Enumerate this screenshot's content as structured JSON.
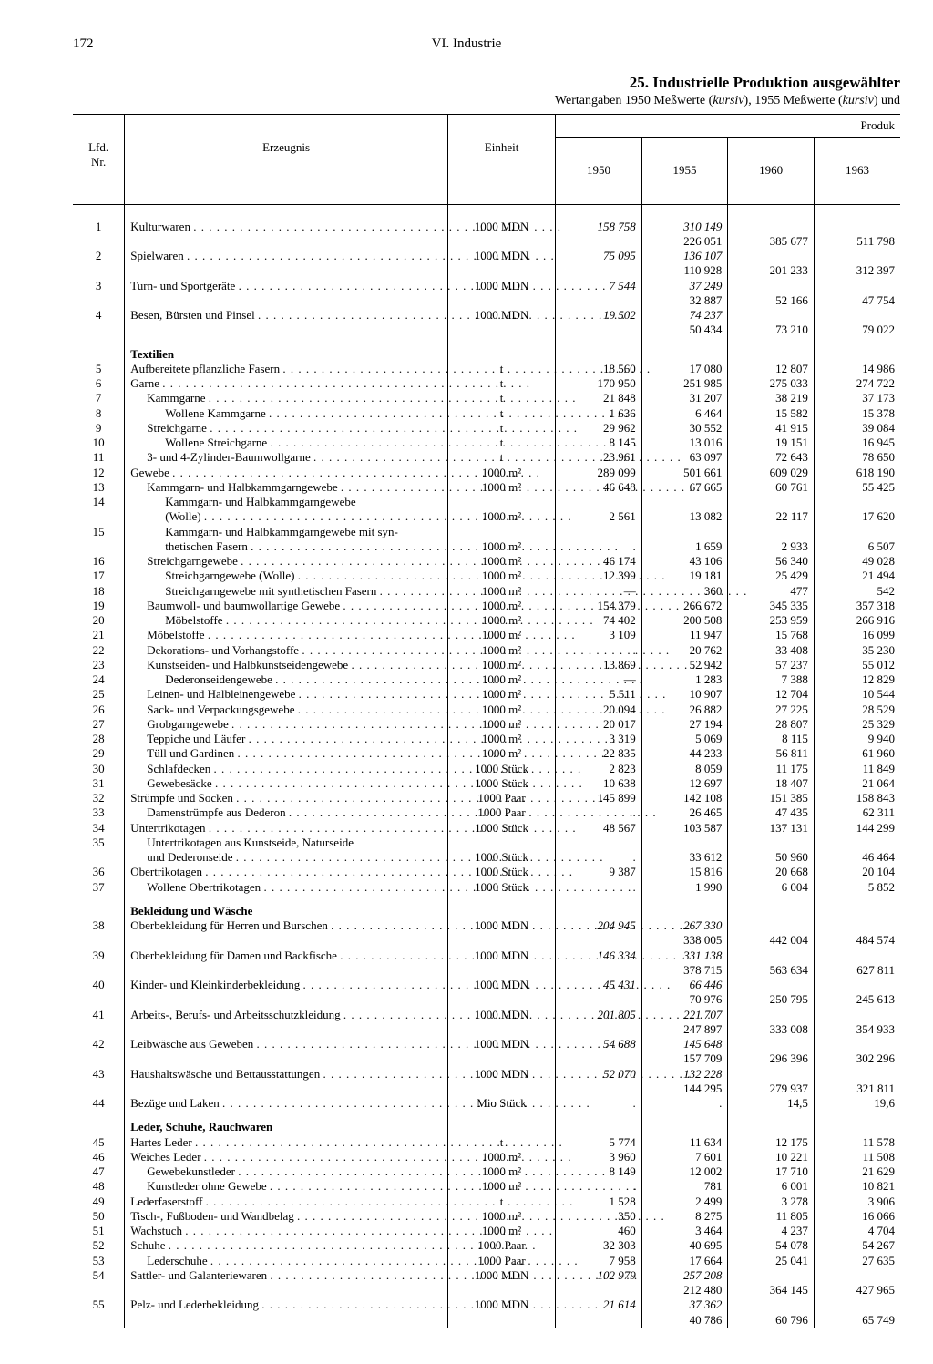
{
  "page_number": "172",
  "header_center": "VI. Industrie",
  "title": "25. Industrielle Produktion ausgewählter",
  "subtitle": "Wertangaben 1950 Meßwerte (kursiv), 1955 Meßwerte (kursiv) und",
  "col_headers": {
    "nr": "Lfd.\nNr.",
    "erz": "Erzeugnis",
    "ein": "Einheit",
    "y1950": "1950",
    "y1955": "1955",
    "y1960": "1960",
    "y1963": "1963",
    "produk": "Produk"
  },
  "rows": [
    {
      "nr": "1",
      "name": "Kulturwaren",
      "unit": "1000 MDN",
      "v": [
        [
          "158 758",
          true
        ],
        [
          "310 149",
          true
        ],
        "",
        ""
      ]
    },
    {
      "nr": "",
      "name": "",
      "unit": "",
      "v": [
        "",
        [
          "226 051",
          false
        ],
        "385 677",
        "511 798"
      ]
    },
    {
      "nr": "2",
      "name": "Spielwaren",
      "unit": "1000 MDN",
      "v": [
        [
          "75 095",
          true
        ],
        [
          "136 107",
          true
        ],
        "",
        ""
      ]
    },
    {
      "nr": "",
      "name": "",
      "unit": "",
      "v": [
        "",
        [
          "110 928",
          false
        ],
        "201 233",
        "312 397"
      ]
    },
    {
      "nr": "3",
      "name": "Turn- und Sportgeräte",
      "unit": "1000 MDN",
      "v": [
        [
          "7 544",
          true
        ],
        [
          "37 249",
          true
        ],
        "",
        ""
      ]
    },
    {
      "nr": "",
      "name": "",
      "unit": "",
      "v": [
        "",
        [
          "32 887",
          false
        ],
        "52 166",
        "47 754"
      ]
    },
    {
      "nr": "4",
      "name": "Besen, Bürsten und Pinsel",
      "unit": "1000 MDN",
      "v": [
        [
          "19 502",
          true
        ],
        [
          "74 237",
          true
        ],
        "",
        ""
      ]
    },
    {
      "nr": "",
      "name": "",
      "unit": "",
      "v": [
        "",
        [
          "50 434",
          false
        ],
        "73 210",
        "79 022"
      ]
    },
    {
      "section": "Textilien"
    },
    {
      "nr": "5",
      "name": "Aufbereitete pflanzliche Fasern",
      "unit": "t",
      "v": [
        "18 560",
        "17 080",
        "12 807",
        "14 986"
      ]
    },
    {
      "nr": "6",
      "name": "Garne",
      "unit": "t",
      "v": [
        "170 950",
        "251 985",
        "275 033",
        "274 722"
      ]
    },
    {
      "nr": "7",
      "indent": 1,
      "name": "Kammgarne",
      "unit": "t",
      "v": [
        "21 848",
        "31 207",
        "38 219",
        "37 173"
      ]
    },
    {
      "nr": "8",
      "indent": 2,
      "name": "Wollene Kammgarne",
      "unit": "t",
      "v": [
        "1 636",
        "6 464",
        "15 582",
        "15 378"
      ]
    },
    {
      "nr": "9",
      "indent": 1,
      "name": "Streichgarne",
      "unit": "t",
      "v": [
        "29 962",
        "30 552",
        "41 915",
        "39 084"
      ]
    },
    {
      "nr": "10",
      "indent": 2,
      "name": "Wollene Streichgarne",
      "unit": "t",
      "v": [
        "8 145",
        "13 016",
        "19 151",
        "16 945"
      ]
    },
    {
      "nr": "11",
      "indent": 1,
      "name": "3- und 4-Zylinder-Baumwollgarne",
      "unit": "t",
      "v": [
        "23 961",
        "63 097",
        "72 643",
        "78 650"
      ]
    },
    {
      "nr": "12",
      "name": "Gewebe",
      "unit": "1000 m²",
      "v": [
        "289 099",
        "501 661",
        "609 029",
        "618 190"
      ]
    },
    {
      "nr": "13",
      "indent": 1,
      "name": "Kammgarn- und Halbkammgarngewebe",
      "unit": "1000 m²",
      "v": [
        "46 648",
        "67 665",
        "60 761",
        "55 425"
      ]
    },
    {
      "nr": "14",
      "indent": 2,
      "name": "Kammgarn- und Halbkammgarngewebe",
      "unit": "",
      "v": [
        "",
        "",
        "",
        ""
      ],
      "nodots": true
    },
    {
      "nr": "",
      "indent": 2,
      "name": "(Wolle)",
      "unit": "1000 m²",
      "v": [
        "2 561",
        "13 082",
        "22 117",
        "17 620"
      ]
    },
    {
      "nr": "15",
      "indent": 2,
      "name": "Kammgarn- und Halbkammgarngewebe mit syn-",
      "unit": "",
      "v": [
        "",
        "",
        "",
        ""
      ],
      "nodots": true
    },
    {
      "nr": "",
      "indent": 2,
      "name": "thetischen Fasern",
      "unit": "1000 m²",
      "v": [
        ".",
        "1 659",
        "2 933",
        "6 507"
      ]
    },
    {
      "nr": "16",
      "indent": 1,
      "name": "Streichgarngewebe",
      "unit": "1000 m²",
      "v": [
        "46 174",
        "43 106",
        "56 340",
        "49 028"
      ]
    },
    {
      "nr": "17",
      "indent": 2,
      "name": "Streichgarngewebe (Wolle)",
      "unit": "1000 m²",
      "v": [
        "12 399",
        "19 181",
        "25 429",
        "21 494"
      ]
    },
    {
      "nr": "18",
      "indent": 2,
      "name": "Streichgarngewebe mit synthetischen Fasern",
      "unit": "1000 m²",
      "v": [
        "—",
        "360",
        "477",
        "542"
      ]
    },
    {
      "nr": "19",
      "indent": 1,
      "name": "Baumwoll- und baumwollartige Gewebe",
      "unit": "1000 m²",
      "v": [
        "154 379",
        "266 672",
        "345 335",
        "357 318"
      ]
    },
    {
      "nr": "20",
      "indent": 2,
      "name": "Möbelstoffe",
      "unit": "1000 m²",
      "v": [
        "74 402",
        "200 508",
        "253 959",
        "266 916"
      ]
    },
    {
      "nr": "21",
      "indent": 1,
      "name": "Möbelstoffe",
      "unit": "1000 m²",
      "v": [
        "3 109",
        "11 947",
        "15 768",
        "16 099"
      ]
    },
    {
      "nr": "22",
      "indent": 1,
      "name": "Dekorations- und Vorhangstoffe",
      "unit": "1000 m²",
      "v": [
        ".",
        "20 762",
        "33 408",
        "35 230"
      ]
    },
    {
      "nr": "23",
      "indent": 1,
      "name": "Kunstseiden- und Halbkunstseidengewebe",
      "unit": "1000 m²",
      "v": [
        "13 869",
        "52 942",
        "57 237",
        "55 012"
      ]
    },
    {
      "nr": "24",
      "indent": 2,
      "name": "Dederonseidengewebe",
      "unit": "1000 m²",
      "v": [
        "—",
        "1 283",
        "7 388",
        "12 829"
      ]
    },
    {
      "nr": "25",
      "indent": 1,
      "name": "Leinen- und Halbleinengewebe",
      "unit": "1000 m²",
      "v": [
        "5 511",
        "10 907",
        "12 704",
        "10 544"
      ]
    },
    {
      "nr": "26",
      "indent": 1,
      "name": "Sack- und Verpackungsgewebe",
      "unit": "1000 m²",
      "v": [
        "20 094",
        "26 882",
        "27 225",
        "28 529"
      ]
    },
    {
      "nr": "27",
      "indent": 1,
      "name": "Grobgarngewebe",
      "unit": "1000 m²",
      "v": [
        "20 017",
        "27 194",
        "28 807",
        "25 329"
      ]
    },
    {
      "nr": "28",
      "indent": 1,
      "name": "Teppiche und Läufer",
      "unit": "1000 m²",
      "v": [
        "3 319",
        "5 069",
        "8 115",
        "9 940"
      ]
    },
    {
      "nr": "29",
      "indent": 1,
      "name": "Tüll und Gardinen",
      "unit": "1000 m²",
      "v": [
        "22 835",
        "44 233",
        "56 811",
        "61 960"
      ]
    },
    {
      "nr": "30",
      "indent": 1,
      "name": "Schlafdecken",
      "unit": "1000 Stück",
      "v": [
        "2 823",
        "8 059",
        "11 175",
        "11 849"
      ]
    },
    {
      "nr": "31",
      "indent": 1,
      "name": "Gewebesäcke",
      "unit": "1000 Stück",
      "v": [
        "10 638",
        "12 697",
        "18 407",
        "21 064"
      ]
    },
    {
      "nr": "32",
      "name": "Strümpfe und Socken",
      "unit": "1000 Paar",
      "v": [
        "145 899",
        "142 108",
        "151 385",
        "158 843"
      ]
    },
    {
      "nr": "33",
      "indent": 1,
      "name": "Damenstrümpfe aus Dederon",
      "unit": "1000 Paar",
      "v": [
        ".",
        "26 465",
        "47 435",
        "62 311"
      ]
    },
    {
      "nr": "34",
      "name": "Untertrikotagen",
      "unit": "1000 Stück",
      "v": [
        "48 567",
        "103 587",
        "137 131",
        "144 299"
      ]
    },
    {
      "nr": "35",
      "indent": 1,
      "name": "Untertrikotagen aus Kunstseide, Naturseide",
      "unit": "",
      "v": [
        "",
        "",
        "",
        ""
      ],
      "nodots": true
    },
    {
      "nr": "",
      "indent": 1,
      "name": "und Dederonseide",
      "unit": "1000 Stück",
      "v": [
        ".",
        "33 612",
        "50 960",
        "46 464"
      ]
    },
    {
      "nr": "36",
      "name": "Obertrikotagen",
      "unit": "1000 Stück",
      "v": [
        "9 387",
        "15 816",
        "20 668",
        "20 104"
      ]
    },
    {
      "nr": "37",
      "indent": 1,
      "name": "Wollene Obertrikotagen",
      "unit": "1000 Stück",
      "v": [
        ".",
        "1 990",
        "6 004",
        "5 852"
      ]
    },
    {
      "section": "Bekleidung und Wäsche"
    },
    {
      "nr": "38",
      "name": "Oberbekleidung für Herren und Burschen",
      "unit": "1000 MDN",
      "v": [
        [
          "204 945",
          true
        ],
        [
          "267 330",
          true
        ],
        "",
        ""
      ]
    },
    {
      "nr": "",
      "name": "",
      "unit": "",
      "v": [
        "",
        [
          "338 005",
          false
        ],
        "442 004",
        "484 574"
      ]
    },
    {
      "nr": "39",
      "name": "Oberbekleidung für Damen und Backfische",
      "unit": "1000 MDN",
      "v": [
        [
          "146 334",
          true
        ],
        [
          "331 138",
          true
        ],
        "",
        ""
      ]
    },
    {
      "nr": "",
      "name": "",
      "unit": "",
      "v": [
        "",
        [
          "378 715",
          false
        ],
        "563 634",
        "627 811"
      ]
    },
    {
      "nr": "40",
      "name": "Kinder- und Kleinkinderbekleidung",
      "unit": "1000 MDN",
      "v": [
        [
          "45 431",
          true
        ],
        [
          "66 446",
          true
        ],
        "",
        ""
      ]
    },
    {
      "nr": "",
      "name": "",
      "unit": "",
      "v": [
        "",
        [
          "70 976",
          false
        ],
        "250 795",
        "245 613"
      ]
    },
    {
      "nr": "41",
      "name": "Arbeits-, Berufs- und Arbeitsschutzkleidung",
      "unit": "1000 MDN",
      "v": [
        [
          "201 805",
          true
        ],
        [
          "221 707",
          true
        ],
        "",
        ""
      ]
    },
    {
      "nr": "",
      "name": "",
      "unit": "",
      "v": [
        "",
        [
          "247 897",
          false
        ],
        "333 008",
        "354 933"
      ]
    },
    {
      "nr": "42",
      "name": "Leibwäsche aus Geweben",
      "unit": "1000 MDN",
      "v": [
        [
          "54 688",
          true
        ],
        [
          "145 648",
          true
        ],
        "",
        ""
      ]
    },
    {
      "nr": "",
      "name": "",
      "unit": "",
      "v": [
        "",
        [
          "157 709",
          false
        ],
        "296 396",
        "302 296"
      ]
    },
    {
      "nr": "43",
      "name": "Haushaltswäsche und Bettausstattungen",
      "unit": "1000 MDN",
      "v": [
        [
          "52 070",
          true
        ],
        [
          "132 228",
          true
        ],
        "",
        ""
      ]
    },
    {
      "nr": "",
      "name": "",
      "unit": "",
      "v": [
        "",
        [
          "144 295",
          false
        ],
        "279 937",
        "321 811"
      ]
    },
    {
      "nr": "44",
      "name": "Bezüge und Laken",
      "unit": "Mio Stück",
      "v": [
        ".",
        ".",
        "14,5",
        "19,6"
      ]
    },
    {
      "section": "Leder, Schuhe, Rauchwaren"
    },
    {
      "nr": "45",
      "name": "Hartes Leder",
      "unit": "t",
      "v": [
        "5 774",
        "11 634",
        "12 175",
        "11 578"
      ]
    },
    {
      "nr": "46",
      "name": "Weiches Leder",
      "unit": "1000 m²",
      "v": [
        "3 960",
        "7 601",
        "10 221",
        "11 508"
      ]
    },
    {
      "nr": "47",
      "indent": 1,
      "name": "Gewebekunstleder",
      "unit": "1000 m²",
      "v": [
        "8 149",
        "12 002",
        "17 710",
        "21 629"
      ]
    },
    {
      "nr": "48",
      "indent": 1,
      "name": "Kunstleder ohne Gewebe",
      "unit": "1000 m²",
      "v": [
        ".",
        "781",
        "6 001",
        "10 821"
      ]
    },
    {
      "nr": "49",
      "name": "Lederfaserstoff",
      "unit": "t",
      "v": [
        "1 528",
        "2 499",
        "3 278",
        "3 906"
      ]
    },
    {
      "nr": "50",
      "name": "Tisch-, Fußboden- und Wandbelag",
      "unit": "1000 m²",
      "v": [
        "350",
        "8 275",
        "11 805",
        "16 066"
      ]
    },
    {
      "nr": "51",
      "name": "Wachstuch",
      "unit": "1000 m²",
      "v": [
        "460",
        "3 464",
        "4 237",
        "4 704"
      ]
    },
    {
      "nr": "52",
      "name": "Schuhe",
      "unit": "1000 Paar",
      "v": [
        "32 303",
        "40 695",
        "54 078",
        "54 267"
      ]
    },
    {
      "nr": "53",
      "indent": 1,
      "name": "Lederschuhe",
      "unit": "1000 Paar",
      "v": [
        "7 958",
        "17 664",
        "25 041",
        "27 635"
      ]
    },
    {
      "nr": "54",
      "name": "Sattler- und Galanteriewaren",
      "unit": "1000 MDN",
      "v": [
        [
          "102 979",
          true
        ],
        [
          "257 208",
          true
        ],
        "",
        ""
      ]
    },
    {
      "nr": "",
      "name": "",
      "unit": "",
      "v": [
        "",
        [
          "212 480",
          false
        ],
        "364 145",
        "427 965"
      ]
    },
    {
      "nr": "55",
      "name": "Pelz- und Lederbekleidung",
      "unit": "1000 MDN",
      "v": [
        [
          "21 614",
          true
        ],
        [
          "37 362",
          true
        ],
        "",
        ""
      ]
    },
    {
      "nr": "",
      "name": "",
      "unit": "",
      "v": [
        "",
        [
          "40 786",
          false
        ],
        "60 796",
        "65 749"
      ]
    }
  ]
}
